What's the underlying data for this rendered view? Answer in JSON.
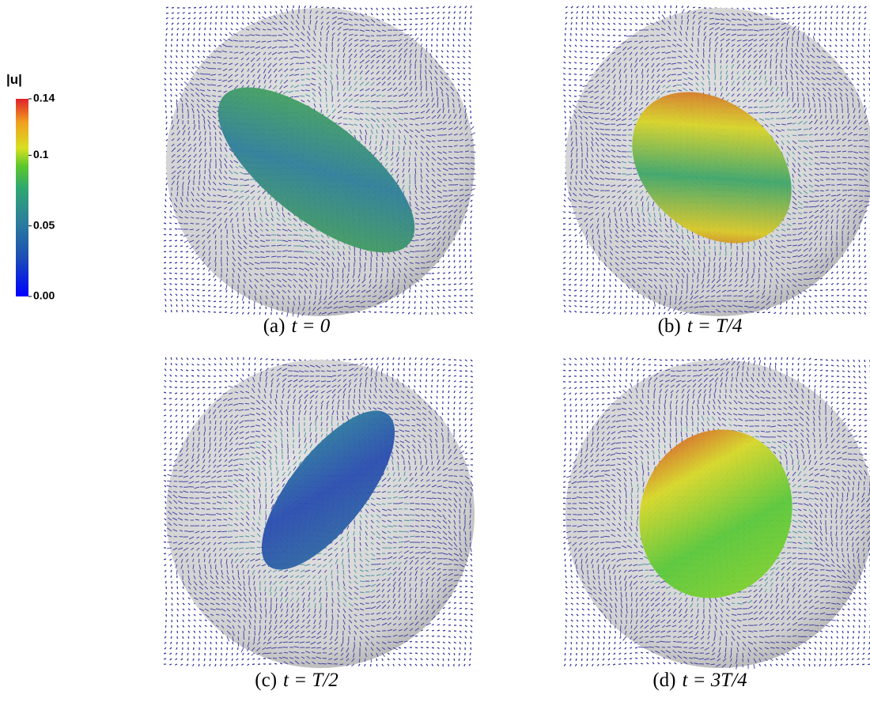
{
  "colorbar": {
    "title": "|u|",
    "lim": [
      0,
      0.14
    ],
    "ticks": [
      {
        "value": 0,
        "label": "0.00"
      },
      0.05,
      0.1,
      0.14
    ]
  },
  "panels": [
    {
      "tag": "(a)",
      "expr": "t = 0"
    },
    {
      "tag": "(b)",
      "expr": "t = T/4"
    },
    {
      "tag": "(c)",
      "expr": "t = T/2"
    },
    {
      "tag": "(d)",
      "expr": "t = 3T/4"
    }
  ]
}
